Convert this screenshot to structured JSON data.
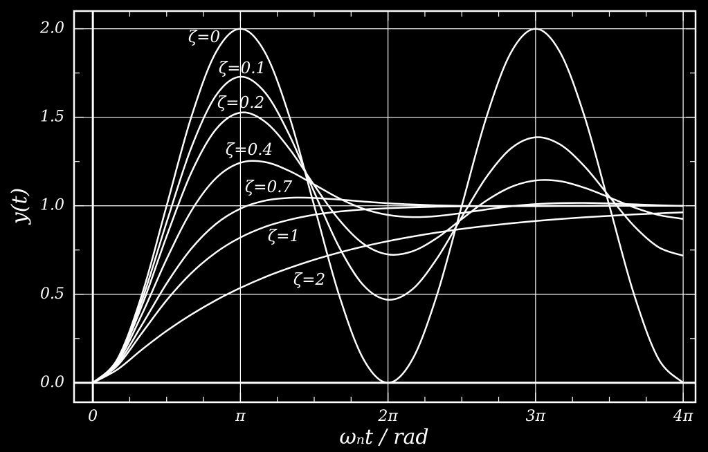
{
  "chart_data": {
    "type": "line",
    "xlabel": "ωₙt / rad",
    "ylabel": "y(t)",
    "x": [
      0,
      0.5236,
      1.0472,
      1.5708,
      2.0944,
      2.618,
      3.1416,
      3.6652,
      4.1888,
      4.7124,
      5.236,
      5.7596,
      6.2832,
      6.8068,
      7.3304,
      7.854,
      8.3776,
      8.9012,
      9.4248,
      9.9484,
      10.472,
      10.9956,
      11.5192,
      12.0428,
      12.5664
    ],
    "series": [
      {
        "name": "ζ=0",
        "color": "#ffffff",
        "values": [
          0,
          0.134,
          0.5,
          1,
          1.5,
          1.866,
          2,
          1.866,
          1.5,
          1,
          0.5,
          0.134,
          0,
          0.134,
          0.5,
          1,
          1.5,
          1.866,
          2,
          1.866,
          1.5,
          1,
          0.5,
          0.134,
          0
        ]
      },
      {
        "name": "ζ=0.1",
        "color": "#ffffff",
        "values": [
          0,
          0.13,
          0.468,
          0.907,
          1.327,
          1.622,
          1.729,
          1.64,
          1.397,
          1.077,
          0.77,
          0.551,
          0.469,
          0.529,
          0.704,
          0.936,
          1.162,
          1.324,
          1.387,
          1.346,
          1.221,
          1.052,
          0.886,
          0.766,
          0.718
        ]
      },
      {
        "name": "ζ=0.2",
        "color": "#ffffff",
        "values": [
          0,
          0.125,
          0.438,
          0.828,
          1.186,
          1.431,
          1.526,
          1.475,
          1.32,
          1.116,
          0.923,
          0.785,
          0.725,
          0.743,
          0.819,
          0.925,
          1.029,
          1.106,
          1.143,
          1.139,
          1.101,
          1.047,
          0.991,
          0.948,
          0.926
        ]
      },
      {
        "name": "ζ=0.4",
        "color": "#ffffff",
        "values": [
          0,
          0.117,
          0.388,
          0.699,
          0.97,
          1.155,
          1.243,
          1.247,
          1.196,
          1.12,
          1.043,
          0.983,
          0.948,
          0.936,
          0.942,
          0.959,
          0.979,
          0.997,
          1.009,
          1.015,
          1.016,
          1.013,
          1.008,
          1.003,
          0.999
        ]
      },
      {
        "name": "ζ=0.7",
        "color": "#ffffff",
        "values": [
          0,
          0.107,
          0.328,
          0.561,
          0.757,
          0.897,
          0.984,
          1.029,
          1.045,
          1.044,
          1.035,
          1.024,
          1.014,
          1.007,
          1.002,
          0.999,
          0.998,
          0.998,
          0.998,
          0.999,
          0.999,
          1,
          1,
          1,
          1
        ]
      },
      {
        "name": "ζ=1",
        "color": "#ffffff",
        "values": [
          0,
          0.097,
          0.282,
          0.466,
          0.619,
          0.736,
          0.821,
          0.881,
          0.921,
          0.949,
          0.967,
          0.979,
          0.986,
          0.991,
          0.995,
          0.997,
          0.998,
          0.999,
          0.999,
          1,
          1,
          1,
          1,
          1,
          1
        ]
      },
      {
        "name": "ζ=2",
        "color": "#ffffff",
        "values": [
          0,
          0.075,
          0.188,
          0.293,
          0.385,
          0.466,
          0.536,
          0.597,
          0.649,
          0.695,
          0.735,
          0.77,
          0.8,
          0.826,
          0.849,
          0.869,
          0.886,
          0.901,
          0.914,
          0.925,
          0.935,
          0.943,
          0.951,
          0.957,
          0.963
        ]
      }
    ],
    "xlim": [
      -0.4,
      12.83
    ],
    "ylim": [
      -0.11,
      2.1
    ],
    "xticks": [
      0,
      {
        "value": 3.1416,
        "label": "π"
      },
      {
        "value": 6.2832,
        "label": "2π"
      },
      {
        "value": 9.4248,
        "label": "3π"
      },
      {
        "value": 12.5664,
        "label": "4π"
      }
    ],
    "yticks": [
      {
        "value": 0,
        "label": "0.0"
      },
      0.5,
      {
        "value": 1,
        "label": "1.0"
      },
      1.5,
      {
        "value": 2,
        "label": "2.0"
      }
    ],
    "xminor_ticks": [
      0.7854,
      1.5708,
      2.3562,
      3.927,
      4.7124,
      5.4978,
      7.0686,
      7.854,
      8.6394,
      10.2102,
      10.9956,
      11.781
    ],
    "yminor_ticks": [
      0.25,
      0.75,
      1.25,
      1.75
    ],
    "grid": true
  }
}
